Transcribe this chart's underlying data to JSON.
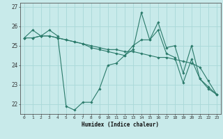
{
  "xlabel": "Humidex (Indice chaleur)",
  "bg_color": "#c8eaea",
  "grid_color": "#a8d8d8",
  "line_color": "#2a7a6a",
  "marker_color": "#2a7a6a",
  "xlim": [
    -0.5,
    23.5
  ],
  "ylim": [
    21.5,
    27.2
  ],
  "xticks": [
    0,
    1,
    2,
    3,
    4,
    5,
    6,
    7,
    8,
    9,
    10,
    11,
    12,
    13,
    14,
    15,
    16,
    17,
    18,
    19,
    20,
    21,
    22,
    23
  ],
  "yticks": [
    22,
    23,
    24,
    25,
    26,
    27
  ],
  "series": [
    [
      25.4,
      25.8,
      25.5,
      25.8,
      25.5,
      21.9,
      21.7,
      22.1,
      22.1,
      22.8,
      24.0,
      24.1,
      24.5,
      24.8,
      26.7,
      25.3,
      25.8,
      24.6,
      24.4,
      23.1,
      24.3,
      23.3,
      22.8,
      22.5
    ],
    [
      25.4,
      25.4,
      25.5,
      25.5,
      25.4,
      25.3,
      25.2,
      25.1,
      25.0,
      24.9,
      24.8,
      24.8,
      24.7,
      24.7,
      24.6,
      24.5,
      24.4,
      24.4,
      24.3,
      24.2,
      24.1,
      23.9,
      23.2,
      22.5
    ],
    [
      25.4,
      25.4,
      25.5,
      25.5,
      25.4,
      25.3,
      25.2,
      25.1,
      24.9,
      24.8,
      24.7,
      24.6,
      24.5,
      25.0,
      25.3,
      25.3,
      26.2,
      24.9,
      25.0,
      23.6,
      25.0,
      23.3,
      22.9,
      22.5
    ]
  ]
}
